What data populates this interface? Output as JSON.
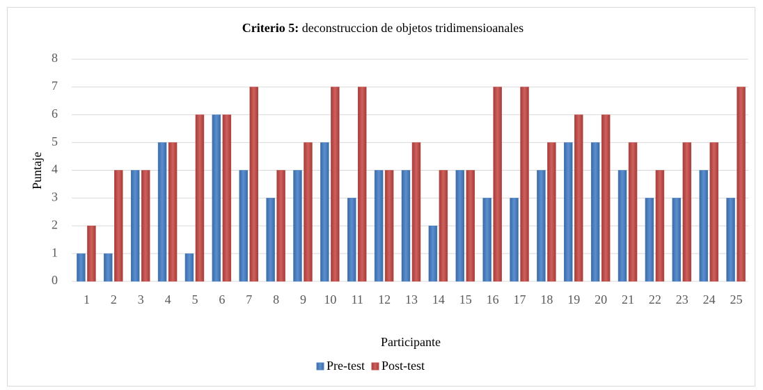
{
  "chart_data": {
    "type": "bar",
    "title": {
      "bold": "Criterio  5:",
      "text": "deconstruccion de objetos tridimensioanales"
    },
    "x_label": "Participante",
    "y_label": "Puntaje",
    "categories": [
      "1",
      "2",
      "3",
      "4",
      "5",
      "6",
      "7",
      "8",
      "9",
      "10",
      "11",
      "12",
      "13",
      "14",
      "15",
      "16",
      "17",
      "18",
      "19",
      "20",
      "21",
      "22",
      "23",
      "24",
      "25"
    ],
    "series": [
      {
        "name": "Pre-test",
        "color": "#4f81bd",
        "values": [
          1,
          1,
          4,
          5,
          1,
          6,
          4,
          3,
          4,
          5,
          3,
          4,
          4,
          2,
          4,
          3,
          3,
          4,
          5,
          5,
          4,
          3,
          3,
          4,
          3
        ]
      },
      {
        "name": "Post-test",
        "color": "#c0504d",
        "values": [
          2,
          4,
          4,
          5,
          6,
          6,
          7,
          4,
          5,
          7,
          7,
          4,
          5,
          4,
          4,
          7,
          7,
          5,
          6,
          6,
          5,
          4,
          5,
          5,
          7
        ]
      }
    ],
    "ylim": [
      0,
      8
    ],
    "yticks": [
      0,
      1,
      2,
      3,
      4,
      5,
      6,
      7,
      8
    ],
    "grid": true,
    "legend": "bottom"
  }
}
